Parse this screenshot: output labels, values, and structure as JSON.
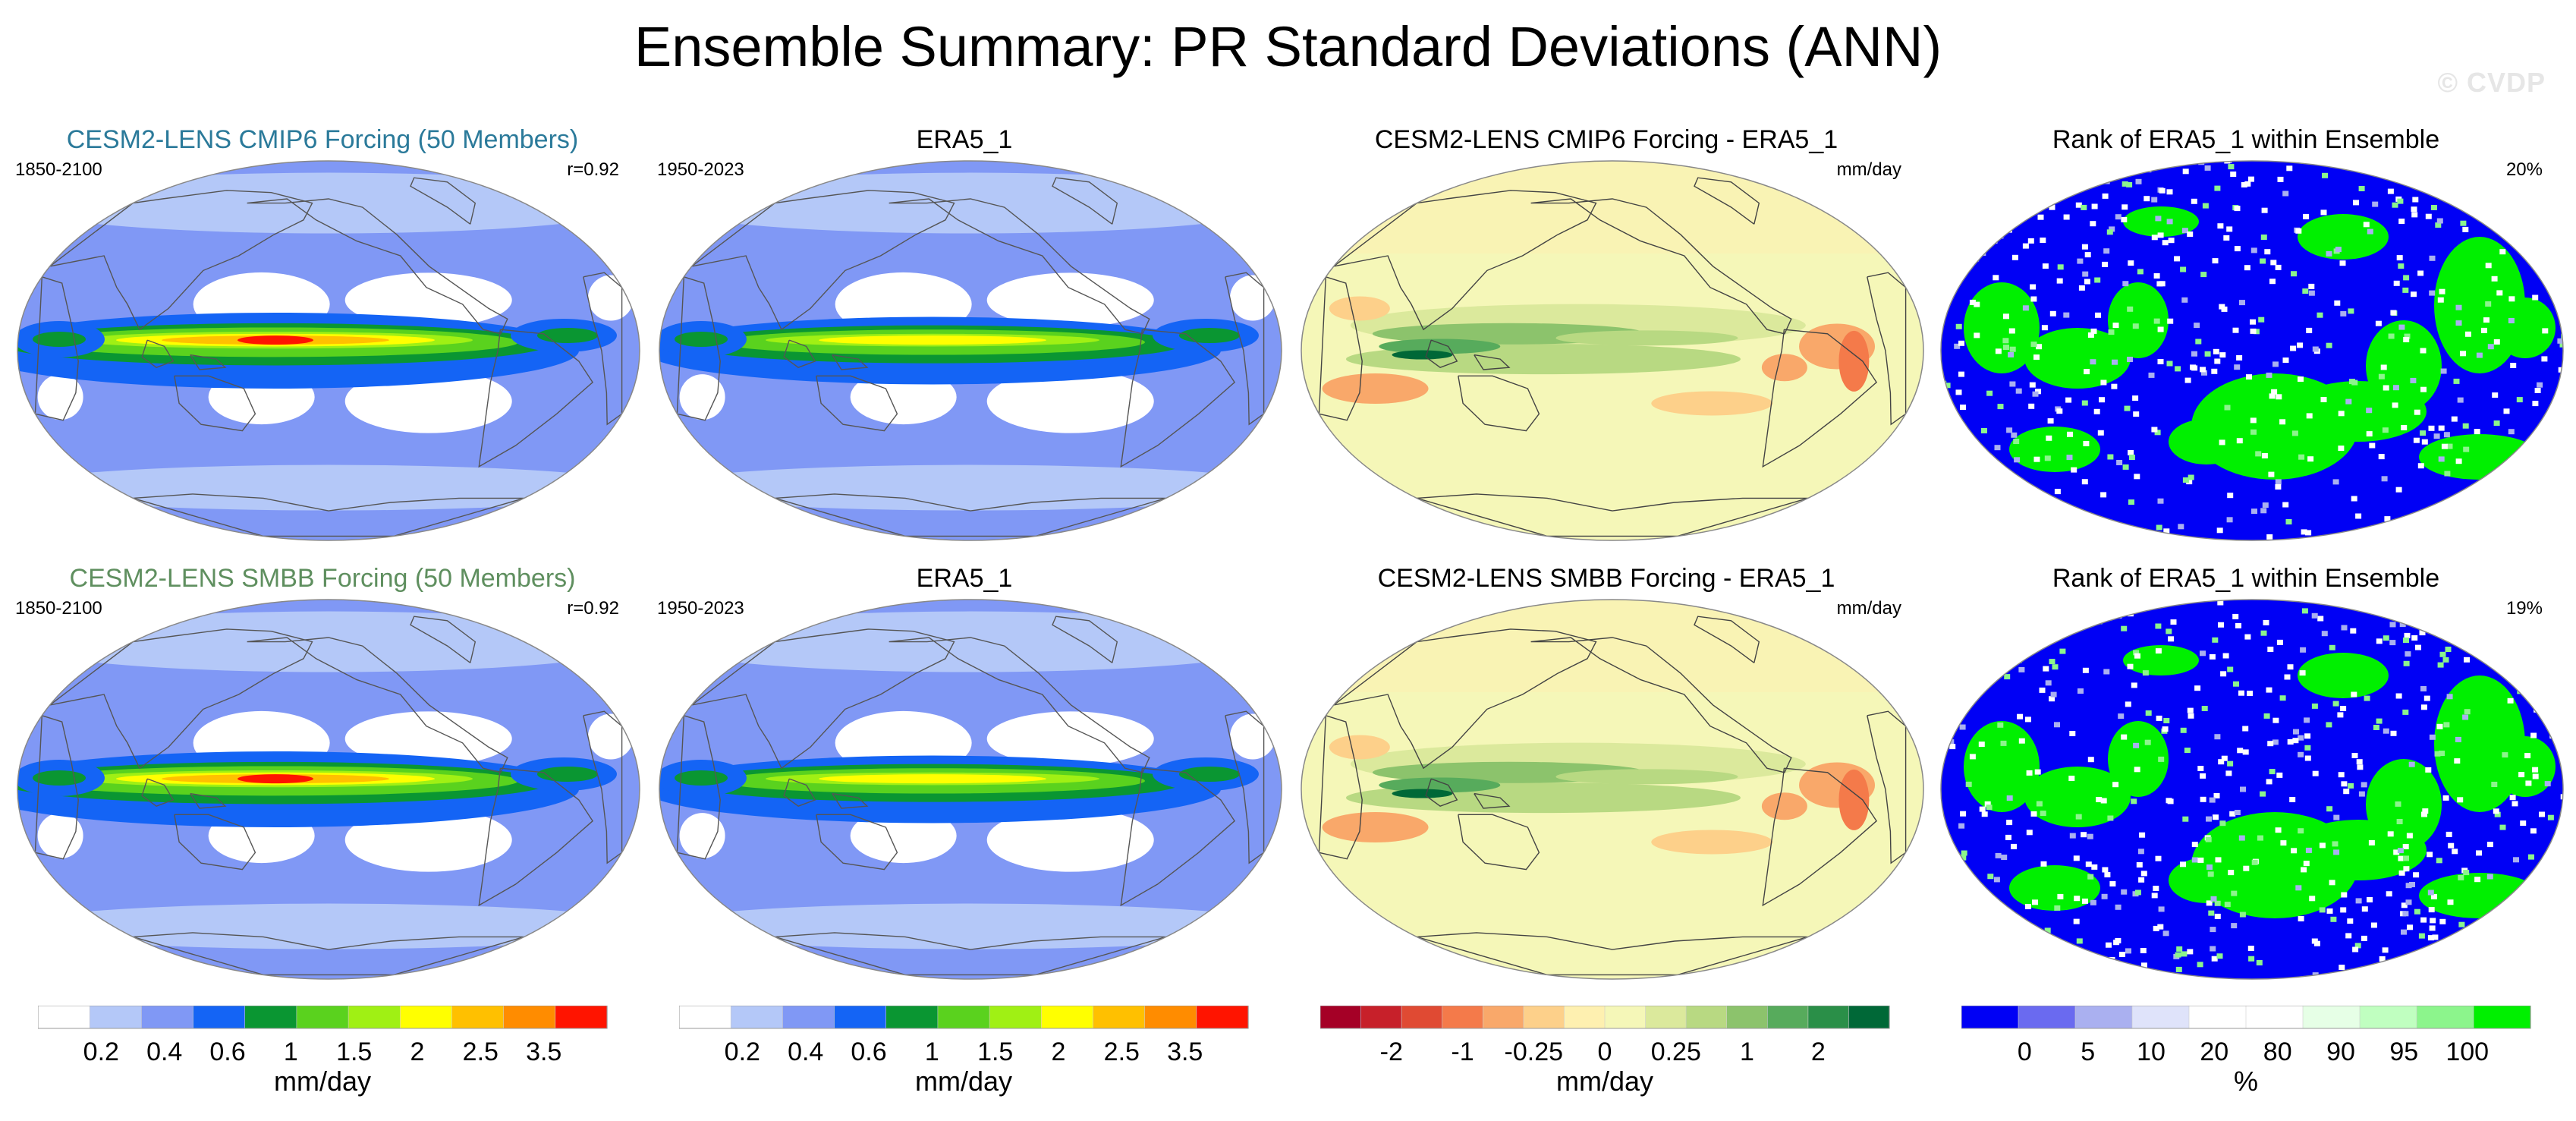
{
  "figure": {
    "title": "Ensemble Summary: PR Standard Deviations (ANN)",
    "watermark": "© CVDP"
  },
  "colors": {
    "model1_title": "#2b7a9a",
    "model2_title": "#5f8f5f",
    "std_scale": [
      "#ffffff",
      "#b4c8f8",
      "#8098f5",
      "#1464f5",
      "#0a9632",
      "#5ad21e",
      "#a0f014",
      "#ffff00",
      "#ffc000",
      "#ff8c00",
      "#ff1400"
    ],
    "diff_scale": [
      "#a50026",
      "#c7202a",
      "#e04a33",
      "#f47a4a",
      "#f9a86a",
      "#fdd08a",
      "#fef0b0",
      "#f5f7b8",
      "#dbe99c",
      "#b8d982",
      "#8cc36c",
      "#57ab5c",
      "#2a8f48",
      "#006837"
    ],
    "rank_scale": [
      "#0000f5",
      "#6a6af0",
      "#aab0f0",
      "#dfe3fa",
      "#ffffff",
      "#ffffff",
      "#e6ffe6",
      "#c0ffc0",
      "#8cf58c",
      "#00f000"
    ]
  },
  "panels": [
    {
      "title": "CESM2-LENS CMIP6 Forcing (50 Members)",
      "left_label": "1850-2100",
      "right_label": "r=0.92",
      "type": "std"
    },
    {
      "title": "ERA5_1",
      "left_label": "1950-2023",
      "right_label": "",
      "type": "std"
    },
    {
      "title": "CESM2-LENS CMIP6 Forcing - ERA5_1",
      "left_label": "",
      "right_label": "mm/day",
      "type": "diff"
    },
    {
      "title": "Rank of ERA5_1 within Ensemble",
      "left_label": "",
      "right_label": "20%",
      "type": "rank"
    },
    {
      "title": "CESM2-LENS SMBB Forcing (50 Members)",
      "left_label": "1850-2100",
      "right_label": "r=0.92",
      "type": "std"
    },
    {
      "title": "ERA5_1",
      "left_label": "1950-2023",
      "right_label": "",
      "type": "std"
    },
    {
      "title": "CESM2-LENS SMBB Forcing - ERA5_1",
      "left_label": "",
      "right_label": "mm/day",
      "type": "diff"
    },
    {
      "title": "Rank of ERA5_1 within Ensemble",
      "left_label": "",
      "right_label": "19%",
      "type": "rank"
    }
  ],
  "colorbars": [
    {
      "labels": [
        "0.2",
        "0.4",
        "0.6",
        "1",
        "1.5",
        "2",
        "2.5",
        "3.5"
      ],
      "units": "mm/day",
      "scale": "std_scale"
    },
    {
      "labels": [
        "0.2",
        "0.4",
        "0.6",
        "1",
        "1.5",
        "2",
        "2.5",
        "3.5"
      ],
      "units": "mm/day",
      "scale": "std_scale"
    },
    {
      "labels": [
        "-2",
        "-1",
        "-0.25",
        "0",
        "0.25",
        "1",
        "2"
      ],
      "units": "mm/day",
      "scale": "diff_scale"
    },
    {
      "labels": [
        "0",
        "5",
        "10",
        "20",
        "80",
        "90",
        "95",
        "100"
      ],
      "units": "%",
      "scale": "rank_scale"
    }
  ]
}
